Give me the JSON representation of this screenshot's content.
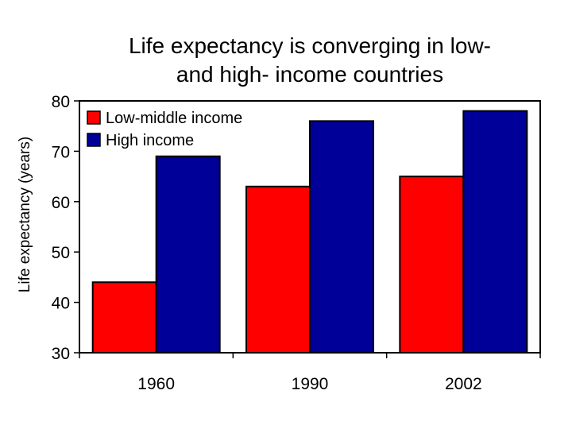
{
  "chart_data": {
    "type": "bar",
    "title": "Life expectancy is converging in low- and high- income countries",
    "title_lines": [
      "Life expectancy is converging in low-",
      "and high- income countries"
    ],
    "xlabel": "",
    "ylabel": "Life expectancy (years)",
    "categories": [
      "1960",
      "1990",
      "2002"
    ],
    "series": [
      {
        "name": "Low-middle income",
        "color": "#ff0000",
        "values": [
          44,
          63,
          65
        ]
      },
      {
        "name": "High income",
        "color": "#000099",
        "values": [
          69,
          76,
          78
        ]
      }
    ],
    "ylim": [
      30,
      80
    ],
    "yticks": [
      30,
      40,
      50,
      60,
      70,
      80
    ],
    "grid": false,
    "legend_position": "top-left"
  }
}
